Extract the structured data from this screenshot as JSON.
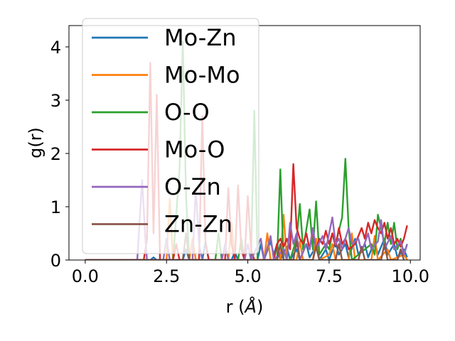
{
  "chart_data": {
    "type": "line",
    "title": "",
    "xlabel": "r (Å)",
    "ylabel": "g(r)",
    "xlim": [
      -0.5,
      10.3
    ],
    "ylim": [
      0,
      4.4
    ],
    "xticks": [
      0.0,
      2.5,
      5.0,
      7.5,
      10.0
    ],
    "xtick_labels": [
      "0.0",
      "2.5",
      "5.0",
      "7.5",
      "10.0"
    ],
    "yticks": [
      0,
      1,
      2,
      3,
      4
    ],
    "ytick_labels": [
      "0",
      "1",
      "2",
      "3",
      "4"
    ],
    "legend_position": "top-left",
    "series": [
      {
        "name": "Mo-Zn",
        "color": "#1f77b4",
        "points": [
          [
            0,
            0
          ],
          [
            1.5,
            0
          ],
          [
            2.0,
            0
          ],
          [
            2.1,
            0.05
          ],
          [
            2.2,
            0
          ],
          [
            3.0,
            0
          ],
          [
            3.1,
            0.2
          ],
          [
            3.2,
            0
          ],
          [
            3.6,
            0
          ],
          [
            3.7,
            0.35
          ],
          [
            3.8,
            0
          ],
          [
            4.5,
            0
          ],
          [
            4.6,
            0.15
          ],
          [
            4.7,
            0
          ],
          [
            5.3,
            0
          ],
          [
            5.4,
            0.3
          ],
          [
            5.5,
            0
          ],
          [
            5.7,
            0.35
          ],
          [
            5.8,
            0.1
          ],
          [
            5.9,
            0.3
          ],
          [
            6.0,
            0
          ],
          [
            6.2,
            0.25
          ],
          [
            6.3,
            0
          ],
          [
            6.5,
            0.2
          ],
          [
            6.6,
            0
          ],
          [
            6.8,
            0.3
          ],
          [
            6.9,
            0.05
          ],
          [
            7.1,
            0.25
          ],
          [
            7.2,
            0
          ],
          [
            7.4,
            0.2
          ],
          [
            7.5,
            0
          ],
          [
            7.7,
            0.35
          ],
          [
            7.8,
            0.1
          ],
          [
            8.0,
            0.3
          ],
          [
            8.1,
            0.05
          ],
          [
            8.3,
            0.4
          ],
          [
            8.4,
            0.1
          ],
          [
            8.6,
            0.3
          ],
          [
            8.7,
            0.05
          ],
          [
            8.9,
            0.35
          ],
          [
            9.0,
            0.1
          ],
          [
            9.2,
            0.4
          ],
          [
            9.3,
            0.1
          ],
          [
            9.5,
            0.3
          ],
          [
            9.6,
            0.05
          ],
          [
            9.8,
            0.2
          ],
          [
            9.9,
            0.05
          ]
        ]
      },
      {
        "name": "Mo-Mo",
        "color": "#ff7f0e",
        "points": [
          [
            0,
            0
          ],
          [
            2.5,
            0
          ],
          [
            2.6,
            1.15
          ],
          [
            2.7,
            0
          ],
          [
            3.2,
            0
          ],
          [
            3.3,
            0.4
          ],
          [
            3.4,
            0
          ],
          [
            4.4,
            0
          ],
          [
            4.5,
            0.7
          ],
          [
            4.6,
            0
          ],
          [
            5.5,
            0
          ],
          [
            5.6,
            0.5
          ],
          [
            5.7,
            0
          ],
          [
            6.0,
            0
          ],
          [
            6.1,
            0.85
          ],
          [
            6.2,
            0
          ],
          [
            6.5,
            0
          ],
          [
            6.6,
            0.35
          ],
          [
            6.7,
            0
          ],
          [
            7.0,
            0
          ],
          [
            7.1,
            0.4
          ],
          [
            7.2,
            0
          ],
          [
            7.5,
            0.1
          ],
          [
            7.6,
            0.3
          ],
          [
            7.7,
            0
          ],
          [
            8.1,
            0
          ],
          [
            8.2,
            0.5
          ],
          [
            8.3,
            0
          ],
          [
            8.8,
            0
          ],
          [
            8.9,
            0.45
          ],
          [
            9.0,
            0
          ],
          [
            9.3,
            0.2
          ],
          [
            9.4,
            0
          ],
          [
            9.8,
            0.1
          ],
          [
            9.9,
            0
          ]
        ]
      },
      {
        "name": "O-O",
        "color": "#2ca02c",
        "points": [
          [
            0,
            0
          ],
          [
            2.7,
            0
          ],
          [
            2.9,
            1.7
          ],
          [
            3.0,
            4.1
          ],
          [
            3.1,
            1.2
          ],
          [
            3.2,
            0
          ],
          [
            4.0,
            0
          ],
          [
            4.1,
            0.5
          ],
          [
            4.2,
            0
          ],
          [
            4.7,
            0
          ],
          [
            4.8,
            0.4
          ],
          [
            4.9,
            0
          ],
          [
            5.1,
            0
          ],
          [
            5.2,
            2.8
          ],
          [
            5.3,
            0
          ],
          [
            5.9,
            0
          ],
          [
            6.0,
            1.7
          ],
          [
            6.1,
            0
          ],
          [
            6.3,
            0
          ],
          [
            6.5,
            0.4
          ],
          [
            6.6,
            1.05
          ],
          [
            6.7,
            0.2
          ],
          [
            6.9,
            0.95
          ],
          [
            7.0,
            0.2
          ],
          [
            7.1,
            1.1
          ],
          [
            7.2,
            0.1
          ],
          [
            7.4,
            0.3
          ],
          [
            7.5,
            0.2
          ],
          [
            7.6,
            0.5
          ],
          [
            7.7,
            0.3
          ],
          [
            7.9,
            0.8
          ],
          [
            8.0,
            1.9
          ],
          [
            8.1,
            0.6
          ],
          [
            8.2,
            0
          ],
          [
            8.6,
            0.2
          ],
          [
            8.8,
            0.3
          ],
          [
            8.9,
            0.1
          ],
          [
            9.0,
            0.85
          ],
          [
            9.1,
            0.6
          ],
          [
            9.2,
            0.3
          ],
          [
            9.3,
            0.7
          ],
          [
            9.4,
            0.3
          ],
          [
            9.5,
            0.7
          ],
          [
            9.6,
            0.2
          ],
          [
            9.7,
            0.4
          ],
          [
            9.8,
            0.1
          ],
          [
            9.9,
            0.3
          ]
        ]
      },
      {
        "name": "Mo-O",
        "color": "#d62728",
        "points": [
          [
            0,
            0
          ],
          [
            1.8,
            0
          ],
          [
            1.9,
            0.4
          ],
          [
            2.0,
            3.7
          ],
          [
            2.1,
            0.5
          ],
          [
            2.2,
            3.1
          ],
          [
            2.3,
            0
          ],
          [
            2.7,
            0
          ],
          [
            2.8,
            0.3
          ],
          [
            2.9,
            0
          ],
          [
            3.5,
            0
          ],
          [
            3.6,
            2.7
          ],
          [
            3.7,
            0.3
          ],
          [
            3.8,
            0
          ],
          [
            4.3,
            0
          ],
          [
            4.4,
            1.35
          ],
          [
            4.5,
            0.3
          ],
          [
            4.6,
            0
          ],
          [
            4.7,
            1.4
          ],
          [
            4.8,
            0.2
          ],
          [
            4.9,
            0
          ],
          [
            5.0,
            1.2
          ],
          [
            5.1,
            0.2
          ],
          [
            5.2,
            0
          ],
          [
            5.8,
            0
          ],
          [
            5.9,
            0.3
          ],
          [
            6.0,
            0.4
          ],
          [
            6.1,
            0.25
          ],
          [
            6.2,
            0.4
          ],
          [
            6.3,
            0.2
          ],
          [
            6.4,
            1.8
          ],
          [
            6.5,
            0.6
          ],
          [
            6.6,
            0.4
          ],
          [
            6.7,
            0.3
          ],
          [
            6.8,
            0.5
          ],
          [
            6.9,
            0.2
          ],
          [
            7.0,
            0.55
          ],
          [
            7.1,
            0.2
          ],
          [
            7.2,
            0.4
          ],
          [
            7.3,
            0.3
          ],
          [
            7.4,
            0.55
          ],
          [
            7.5,
            0.3
          ],
          [
            7.6,
            0.5
          ],
          [
            7.7,
            0.25
          ],
          [
            7.8,
            0.6
          ],
          [
            7.9,
            0.3
          ],
          [
            8.0,
            0.4
          ],
          [
            8.1,
            0.2
          ],
          [
            8.3,
            0.3
          ],
          [
            8.5,
            0.6
          ],
          [
            8.6,
            0.4
          ],
          [
            8.7,
            0.7
          ],
          [
            8.8,
            0.5
          ],
          [
            8.9,
            0.75
          ],
          [
            9.0,
            0.6
          ],
          [
            9.1,
            0.5
          ],
          [
            9.2,
            0.7
          ],
          [
            9.3,
            0.4
          ],
          [
            9.4,
            0.6
          ],
          [
            9.5,
            0.3
          ],
          [
            9.6,
            0.4
          ],
          [
            9.7,
            0.25
          ],
          [
            9.8,
            0.4
          ],
          [
            9.9,
            0.65
          ]
        ]
      },
      {
        "name": "O-Zn",
        "color": "#9467bd",
        "points": [
          [
            0,
            0
          ],
          [
            1.6,
            0
          ],
          [
            1.75,
            1.5
          ],
          [
            1.85,
            0.4
          ],
          [
            1.9,
            0
          ],
          [
            2.4,
            0
          ],
          [
            2.5,
            0.4
          ],
          [
            2.6,
            0
          ],
          [
            3.3,
            0
          ],
          [
            3.4,
            1.35
          ],
          [
            3.5,
            0.3
          ],
          [
            3.6,
            0
          ],
          [
            4.2,
            0
          ],
          [
            4.3,
            0.3
          ],
          [
            4.4,
            0
          ],
          [
            4.9,
            0
          ],
          [
            5.0,
            0.3
          ],
          [
            5.1,
            0
          ],
          [
            5.4,
            0.4
          ],
          [
            5.5,
            0
          ],
          [
            5.7,
            0.45
          ],
          [
            5.8,
            0
          ],
          [
            6.1,
            0.2
          ],
          [
            6.2,
            0
          ],
          [
            6.3,
            0.7
          ],
          [
            6.4,
            0.3
          ],
          [
            6.5,
            0.5
          ],
          [
            6.6,
            0
          ],
          [
            6.8,
            0.3
          ],
          [
            6.9,
            0.2
          ],
          [
            7.0,
            0.6
          ],
          [
            7.1,
            0.2
          ],
          [
            7.3,
            0.45
          ],
          [
            7.4,
            0.2
          ],
          [
            7.6,
            0.8
          ],
          [
            7.7,
            0.3
          ],
          [
            7.8,
            0.4
          ],
          [
            7.9,
            0.2
          ],
          [
            8.1,
            0.6
          ],
          [
            8.2,
            0.3
          ],
          [
            8.4,
            0.4
          ],
          [
            8.5,
            0.15
          ],
          [
            8.7,
            0.5
          ],
          [
            8.8,
            0.2
          ],
          [
            9.0,
            0.35
          ],
          [
            9.1,
            0.75
          ],
          [
            9.2,
            0.2
          ],
          [
            9.4,
            0.45
          ],
          [
            9.5,
            0.2
          ],
          [
            9.7,
            0.35
          ],
          [
            9.8,
            0.1
          ],
          [
            9.9,
            0.3
          ]
        ]
      },
      {
        "name": "Zn-Zn",
        "color": "#8c564b",
        "points": [
          [
            0,
            0
          ],
          [
            3.0,
            0
          ],
          [
            3.1,
            0.5
          ],
          [
            3.2,
            0
          ],
          [
            5.9,
            0
          ],
          [
            6.0,
            0.3
          ],
          [
            6.1,
            0
          ],
          [
            6.4,
            0
          ],
          [
            6.5,
            0.35
          ],
          [
            6.6,
            0
          ],
          [
            7.0,
            0
          ],
          [
            7.1,
            0.25
          ],
          [
            7.2,
            0
          ],
          [
            7.7,
            0
          ],
          [
            7.8,
            0.3
          ],
          [
            7.9,
            0
          ],
          [
            8.4,
            0
          ],
          [
            8.5,
            0.25
          ],
          [
            8.6,
            0
          ],
          [
            9.1,
            0
          ],
          [
            9.2,
            0.3
          ],
          [
            9.3,
            0
          ],
          [
            9.6,
            0
          ],
          [
            9.7,
            0.2
          ],
          [
            9.8,
            0
          ]
        ]
      }
    ]
  }
}
